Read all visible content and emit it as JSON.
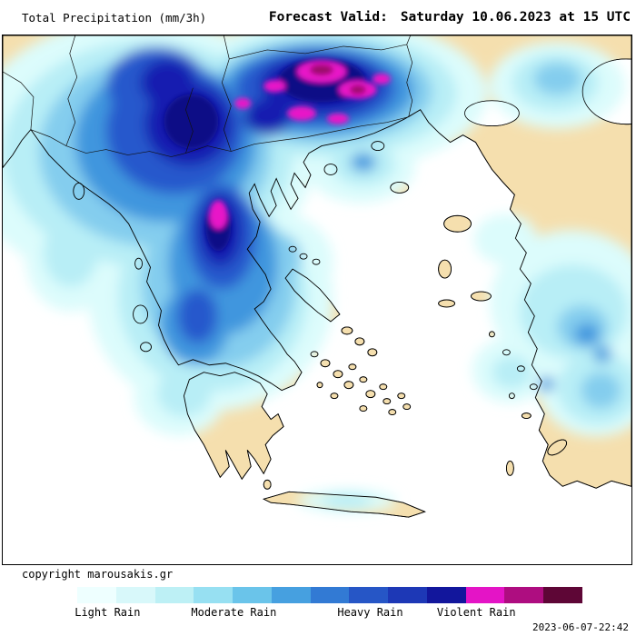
{
  "header": {
    "title": "Total Precipitation (mm/3h)",
    "forecast_label": "Forecast Valid:",
    "forecast_value": "Saturday 10.06.2023 at 15 UTC"
  },
  "map": {
    "land_color": "#f5dfae",
    "sea_color": "#ffffff",
    "coastline_color": "#000000"
  },
  "footer": {
    "copyright": "copyright marousakis.gr",
    "generated": "2023-06-07-22:42"
  },
  "legend": {
    "colors": [
      "#eeffff",
      "#d8f8fa",
      "#bdf0f5",
      "#97e0f2",
      "#6ac4ea",
      "#46a0e0",
      "#327ad4",
      "#2656c6",
      "#1d38b6",
      "#12169c",
      "#e414c6",
      "#ae0d80",
      "#5e0636"
    ],
    "labels": [
      "Light Rain",
      "Moderate Rain",
      "Heavy Rain",
      "Violent Rain"
    ],
    "label_positions_pct": [
      6,
      31,
      58,
      79
    ]
  }
}
